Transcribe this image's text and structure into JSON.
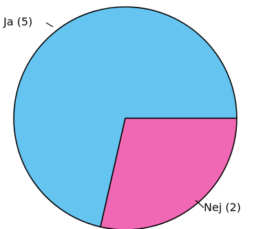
{
  "chart_data": {
    "type": "pie",
    "slices": [
      {
        "label": "Ja (5)",
        "value": 5,
        "color": "#66c4f0"
      },
      {
        "label": "Nej (2)",
        "value": 2,
        "color": "#f067b4"
      }
    ],
    "title": "",
    "legend": "none"
  }
}
